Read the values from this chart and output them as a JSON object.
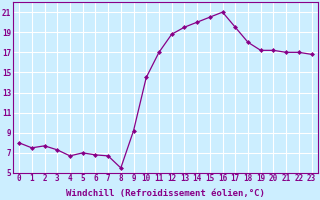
{
  "x": [
    0,
    1,
    2,
    3,
    4,
    5,
    6,
    7,
    8,
    9,
    10,
    11,
    12,
    13,
    14,
    15,
    16,
    17,
    18,
    19,
    20,
    21,
    22,
    23
  ],
  "y": [
    8.0,
    7.5,
    7.7,
    7.3,
    6.7,
    7.0,
    6.8,
    6.7,
    5.5,
    9.2,
    14.5,
    17.0,
    18.8,
    19.5,
    20.0,
    20.5,
    21.0,
    19.5,
    18.0,
    17.2,
    17.2,
    17.0,
    17.0,
    16.8
  ],
  "line_color": "#880088",
  "marker": "D",
  "marker_size": 2.0,
  "background_color": "#cceeff",
  "grid_color": "#ffffff",
  "xlabel": "Windchill (Refroidissement éolien,°C)",
  "xlabel_fontsize": 6.5,
  "tick_fontsize": 5.5,
  "ylim": [
    5,
    22
  ],
  "xlim": [
    -0.5,
    23.5
  ],
  "yticks": [
    5,
    7,
    9,
    11,
    13,
    15,
    17,
    19,
    21
  ],
  "xticks": [
    0,
    1,
    2,
    3,
    4,
    5,
    6,
    7,
    8,
    9,
    10,
    11,
    12,
    13,
    14,
    15,
    16,
    17,
    18,
    19,
    20,
    21,
    22,
    23
  ],
  "xtick_labels": [
    "0",
    "1",
    "2",
    "3",
    "4",
    "5",
    "6",
    "7",
    "8",
    "9",
    "10",
    "11",
    "12",
    "13",
    "14",
    "15",
    "16",
    "17",
    "18",
    "19",
    "20",
    "21",
    "22",
    "23"
  ]
}
